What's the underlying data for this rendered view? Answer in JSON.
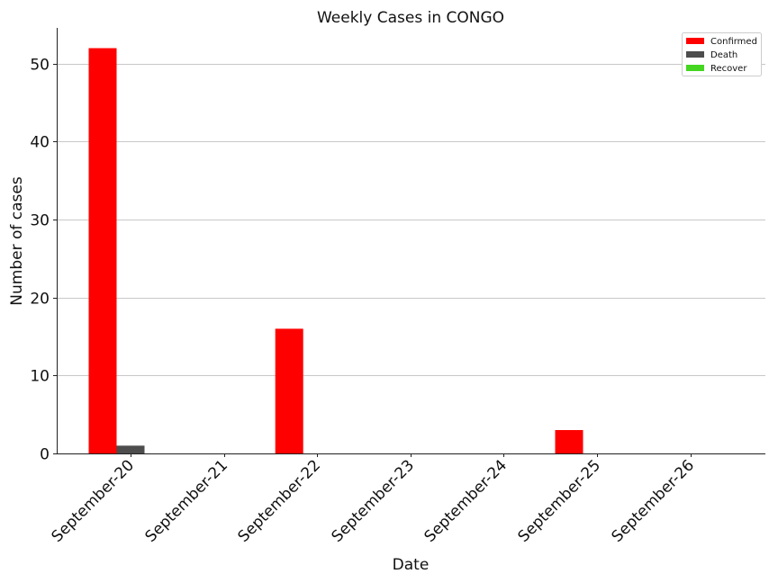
{
  "chart_data": {
    "type": "bar",
    "title": "Weekly Cases in CONGO",
    "xlabel": "Date",
    "ylabel": "Number of cases",
    "categories": [
      "September-20",
      "September-21",
      "September-22",
      "September-23",
      "September-24",
      "September-25",
      "September-26"
    ],
    "series": [
      {
        "name": "Confirmed",
        "color": "#ff0000",
        "values": [
          52,
          0,
          16,
          0,
          0,
          3,
          0
        ]
      },
      {
        "name": "Death",
        "color": "#4d4d4d",
        "values": [
          1,
          0,
          0,
          0,
          0,
          0,
          0
        ]
      },
      {
        "name": "Recover",
        "color": "#44d620",
        "values": [
          0,
          0,
          0,
          0,
          0,
          0,
          0
        ]
      }
    ],
    "ylim": [
      0,
      54.6
    ],
    "yticks": [
      0,
      10,
      20,
      30,
      40,
      50
    ],
    "grid": "horizontal",
    "legend_position": "top-right"
  }
}
